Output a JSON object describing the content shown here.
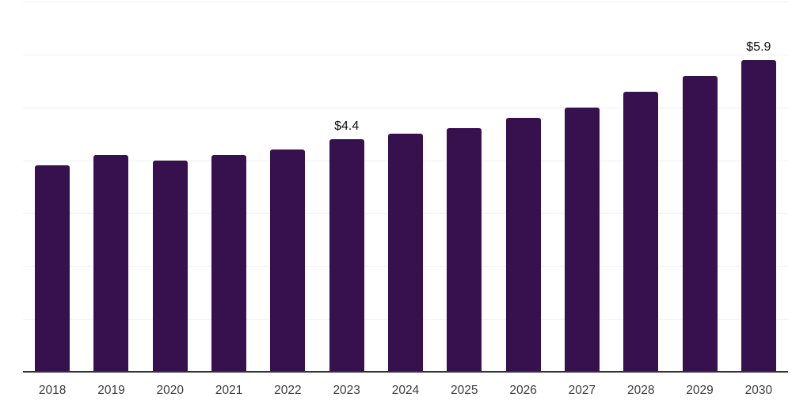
{
  "chart_data": {
    "type": "bar",
    "title": "",
    "xlabel": "",
    "ylabel": "",
    "categories": [
      "2018",
      "2019",
      "2020",
      "2021",
      "2022",
      "2023",
      "2024",
      "2025",
      "2026",
      "2027",
      "2028",
      "2029",
      "2030"
    ],
    "values": [
      3.9,
      4.1,
      4.0,
      4.1,
      4.2,
      4.4,
      4.5,
      4.6,
      4.8,
      5.0,
      5.3,
      5.6,
      5.9
    ],
    "data_labels": [
      "",
      "",
      "",
      "",
      "",
      "$4.4",
      "",
      "",
      "",
      "",
      "",
      "",
      "$5.9"
    ],
    "ylim": [
      0,
      7
    ],
    "gridline_interval": 1,
    "grid": true,
    "legend": false,
    "colors": {
      "bar": "#36114D",
      "gridline": "#efefef",
      "axis_line": "#333333",
      "tick_label": "#3d3d3d",
      "data_label": "#111111"
    }
  }
}
